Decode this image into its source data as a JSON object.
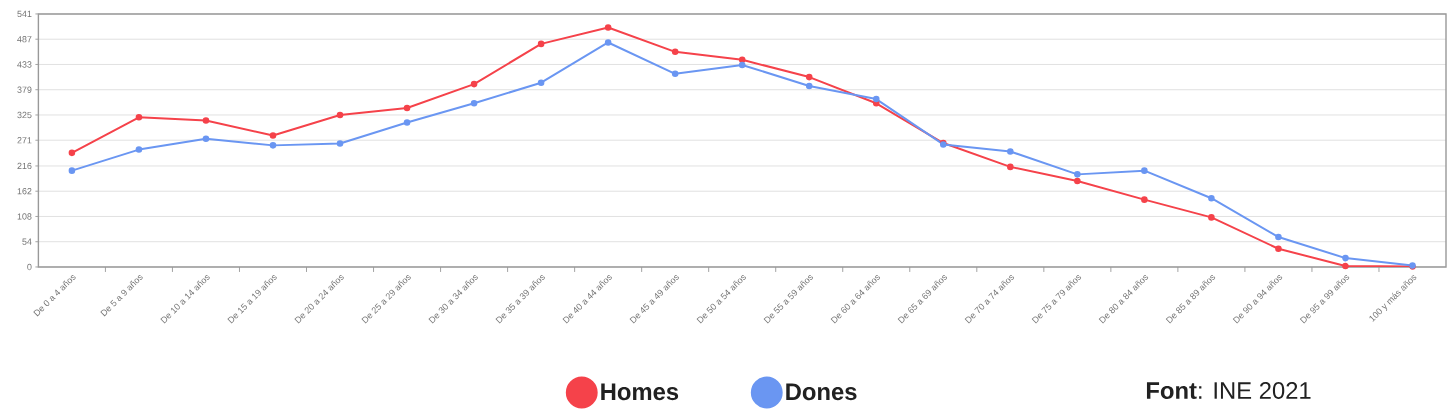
{
  "chart_data": {
    "type": "line",
    "categories": [
      "De 0 a 4 años",
      "De 5 a 9 años",
      "De 10 a 14 años",
      "De 15 a 19 años",
      "De 20 a 24 años",
      "De 25 a 29 años",
      "De 30 a 34 años",
      "De 35 a 39 años",
      "De 40 a 44 años",
      "De 45 a 49 años",
      "De 50 a 54 años",
      "De 55 a 59 años",
      "De 60 a 64 años",
      "De 65 a 69 años",
      "De 70 a 74 años",
      "De 75 a 79 años",
      "De 80 a 84 años",
      "De 85 a 89 años",
      "De 90 a 94 años",
      "De 95 a 99 años",
      "100 y más años"
    ],
    "series": [
      {
        "name": "Homes",
        "color": "#f5424a",
        "values": [
          244,
          320,
          313,
          281,
          325,
          340,
          391,
          477,
          512,
          460,
          443,
          406,
          350,
          265,
          214,
          184,
          144,
          106,
          39,
          2,
          1
        ]
      },
      {
        "name": "Dones",
        "color": "#6a96f2",
        "values": [
          206,
          251,
          274,
          260,
          264,
          309,
          350,
          394,
          480,
          413,
          432,
          387,
          359,
          262,
          247,
          198,
          206,
          147,
          64,
          19,
          3
        ]
      }
    ],
    "ylim": [
      0,
      541
    ],
    "yticks": [
      0,
      54,
      108,
      162,
      216,
      271,
      325,
      379,
      433,
      487,
      541
    ],
    "grid": "y",
    "legend": "bottom",
    "marker": "circle",
    "line_style": "solid",
    "annotations": [
      "**Font**: INE 2021"
    ]
  }
}
